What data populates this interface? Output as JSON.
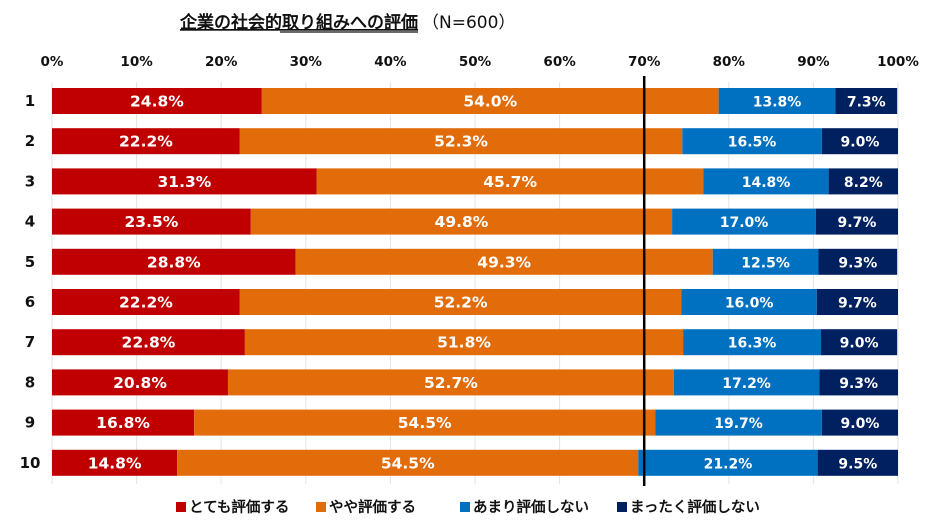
{
  "chart_data": {
    "type": "bar",
    "orientation": "horizontal",
    "stacked": "100%",
    "title": "企業の社会的取り組みへの評価",
    "subtitle": "（N=600）",
    "categories": [
      "1",
      "2",
      "3",
      "4",
      "5",
      "6",
      "7",
      "8",
      "9",
      "10"
    ],
    "xlim": [
      0,
      100
    ],
    "x_ticks": [
      "0%",
      "10%",
      "20%",
      "30%",
      "40%",
      "50%",
      "60%",
      "70%",
      "80%",
      "90%",
      "100%"
    ],
    "grid": true,
    "reference_line": 70,
    "legend_position": "bottom",
    "series": [
      {
        "name": "とても評価する",
        "color": "#c00000",
        "values": [
          24.8,
          22.2,
          31.3,
          23.5,
          28.8,
          22.2,
          22.8,
          20.8,
          16.8,
          14.8
        ]
      },
      {
        "name": "やや評価する",
        "color": "#e26b0a",
        "values": [
          54.0,
          52.3,
          45.7,
          49.8,
          49.3,
          52.2,
          51.8,
          52.7,
          54.5,
          54.5
        ]
      },
      {
        "name": "あまり評価しない",
        "color": "#0070c0",
        "values": [
          13.8,
          16.5,
          14.8,
          17.0,
          12.5,
          16.0,
          16.3,
          17.2,
          19.7,
          21.2
        ]
      },
      {
        "name": "まったく評価しない",
        "color": "#002060",
        "values": [
          7.3,
          9.0,
          8.2,
          9.7,
          9.3,
          9.7,
          9.0,
          9.3,
          9.0,
          9.5
        ]
      }
    ]
  }
}
